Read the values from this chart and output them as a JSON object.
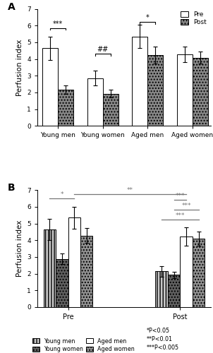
{
  "panel_A": {
    "groups": [
      "Young men",
      "Young women",
      "Aged men",
      "Aged women"
    ],
    "pre_values": [
      4.65,
      2.85,
      5.35,
      4.28
    ],
    "pre_errors": [
      0.7,
      0.45,
      0.7,
      0.45
    ],
    "post_values": [
      2.15,
      1.93,
      4.22,
      4.08
    ],
    "post_errors": [
      0.25,
      0.25,
      0.5,
      0.35
    ],
    "ylim": [
      0,
      7
    ],
    "yticks": [
      0,
      1,
      2,
      3,
      4,
      5,
      6,
      7
    ],
    "ylabel": "Perfusion index",
    "sig_A": {
      "label": "***",
      "y": 5.85
    },
    "sig_B": {
      "label": "##",
      "y": 4.3
    },
    "sig_C": {
      "label": "*",
      "y": 6.2
    }
  },
  "panel_B": {
    "conditions": [
      "Pre",
      "Post"
    ],
    "groups": [
      "Young men",
      "Young women",
      "Aged men",
      "Aged women"
    ],
    "values_pre": [
      4.65,
      2.88,
      5.35,
      4.28
    ],
    "values_post": [
      2.15,
      1.93,
      4.22,
      4.08
    ],
    "errors_pre": [
      0.65,
      0.32,
      0.65,
      0.45
    ],
    "errors_post": [
      0.32,
      0.2,
      0.55,
      0.42
    ],
    "ylim": [
      0,
      7
    ],
    "yticks": [
      0,
      1,
      2,
      3,
      4,
      5,
      6,
      7
    ],
    "ylabel": "Perfusion index"
  },
  "post_hatch": "....",
  "post_face": "#888888",
  "pre_face": "#ffffff",
  "group_styles": [
    {
      "facecolor": "#c8c8c8",
      "hatch": "||||",
      "edgecolor": "black",
      "label": "Young men"
    },
    {
      "facecolor": "#606060",
      "hatch": "....",
      "edgecolor": "black",
      "label": "Young women"
    },
    {
      "facecolor": "#ffffff",
      "hatch": "",
      "edgecolor": "black",
      "label": "Aged men"
    },
    {
      "facecolor": "#909090",
      "hatch": "....",
      "edgecolor": "black",
      "label": "Aged women"
    }
  ]
}
